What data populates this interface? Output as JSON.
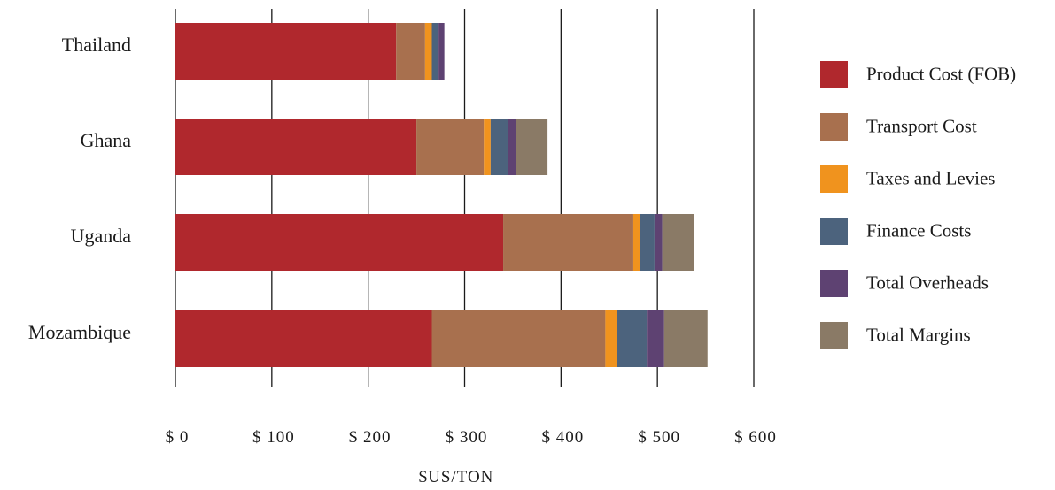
{
  "chart_data": {
    "type": "bar",
    "orientation": "horizontal",
    "stacked": true,
    "categories": [
      "Thailand",
      "Ghana",
      "Uganda",
      "Mozambique"
    ],
    "series": [
      {
        "name": "Product Cost (FOB)",
        "color": "#b0282d",
        "values": [
          229,
          250,
          340,
          266
        ]
      },
      {
        "name": "Transport Cost",
        "color": "#a8704e",
        "values": [
          30,
          70,
          135,
          180
        ]
      },
      {
        "name": "Taxes and Levies",
        "color": "#f0931e",
        "values": [
          7,
          7,
          7,
          12
        ]
      },
      {
        "name": "Finance Costs",
        "color": "#4c637d",
        "values": [
          7,
          18,
          15,
          31
        ]
      },
      {
        "name": "Total Overheads",
        "color": "#5e4272",
        "values": [
          6,
          8,
          8,
          18
        ]
      },
      {
        "name": "Total Margins",
        "color": "#8a7a66",
        "values": [
          0,
          33,
          33,
          45
        ]
      }
    ],
    "xlim": [
      0,
      600
    ],
    "xticks": [
      0,
      100,
      200,
      300,
      400,
      500,
      600
    ],
    "xtick_labels": [
      "$ 0",
      "$ 100",
      "$ 200",
      "$ 300",
      "$ 400",
      "$ 500",
      "$ 600"
    ],
    "xlabel": "$US/TON",
    "ylabel": "",
    "title": "",
    "grid": "vertical",
    "legend_position": "right"
  }
}
